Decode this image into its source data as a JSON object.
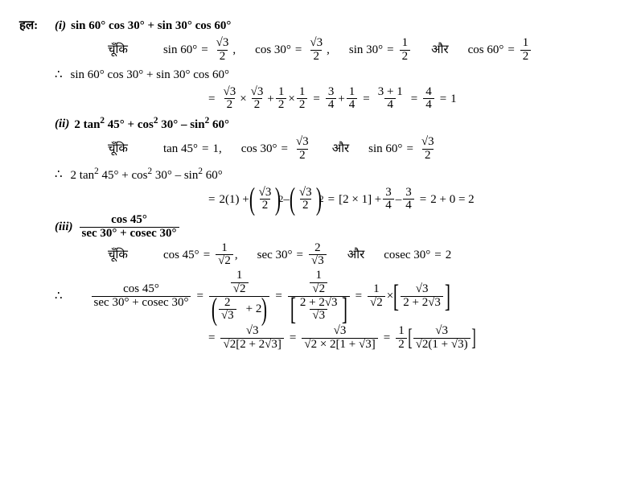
{
  "solution_label": "हल:",
  "since_word": "चूँकि",
  "and_word": "और",
  "therefore_sym": "∴",
  "parts": {
    "i": {
      "roman": "(i)",
      "expression_prefix": "sin 60° cos 30° + sin 30° cos 60°",
      "subs": {
        "a_lhs": "sin 60°",
        "a_num": "√3",
        "a_den": "2",
        "b_lhs": "cos 30°",
        "b_num": "√3",
        "b_den": "2",
        "c_lhs": "sin 30°",
        "c_num": "1",
        "c_den": "2",
        "d_lhs": "cos 60°",
        "d_num": "1",
        "d_den": "2"
      },
      "restate": "sin 60° cos 30° + sin 30° cos 60°",
      "steps": {
        "s1_a_num": "√3",
        "s1_a_den": "2",
        "s1_b_num": "√3",
        "s1_b_den": "2",
        "s1_c_num": "1",
        "s1_c_den": "2",
        "s1_d_num": "1",
        "s1_d_den": "2",
        "s2_a_num": "3",
        "s2_a_den": "4",
        "s2_b_num": "1",
        "s2_b_den": "4",
        "s3_num": "3 + 1",
        "s3_den": "4",
        "s4_num": "4",
        "s4_den": "4",
        "s5": "1"
      }
    },
    "ii": {
      "roman": "(ii)",
      "expression_prefix_a": "2 tan",
      "expression_prefix_b": " 45° + cos",
      "expression_prefix_c": " 30° – sin",
      "expression_prefix_d": " 60°",
      "subs": {
        "a_lhs": "tan 45°",
        "a_val": "1",
        "b_lhs": "cos 30°",
        "b_num": "√3",
        "b_den": "2",
        "c_lhs": "sin 60°",
        "c_num": "√3",
        "c_den": "2"
      },
      "restate_a": "2 tan",
      "restate_b": " 45° + cos",
      "restate_c": " 30° – sin",
      "restate_d": " 60°",
      "steps": {
        "s1_lead": "2(1) +",
        "s1_p1_num": "√3",
        "s1_p1_den": "2",
        "s1_p2_num": "√3",
        "s1_p2_den": "2",
        "s2_txt": "[2 × 1] +",
        "s2_a_num": "3",
        "s2_a_den": "4",
        "s2_b_num": "3",
        "s2_b_den": "4",
        "s3": "2 + 0 = 2"
      }
    },
    "iii": {
      "roman": "(iii)",
      "expr_num": "cos 45°",
      "expr_den": "sec 30° + cosec 30°",
      "subs": {
        "a_lhs": "cos 45°",
        "a_num": "1",
        "a_den": "√2",
        "b_lhs": "sec 30°",
        "b_num": "2",
        "b_den": "√3",
        "c_lhs": "cosec 30°",
        "c_val": "2"
      },
      "restate_num": "cos 45°",
      "restate_den": "sec 30° + cosec 30°",
      "steps": {
        "f1_top_num": "1",
        "f1_top_den": "√2",
        "f1_bot_num": "2",
        "f1_bot_den": "√3",
        "f1_bot_tail": "+ 2",
        "f2_top_num": "1",
        "f2_top_den": "√2",
        "f2_bot_num": "2 + 2√3",
        "f2_bot_den": "√3",
        "f3_a_num": "1",
        "f3_a_den": "√2",
        "f3_b_num": "√3",
        "f3_b_den": "2 + 2√3",
        "l2_a_num": "√3",
        "l2_a_den": "√2[2 + 2√3]",
        "l2_b_num": "√3",
        "l2_b_den": "√2 × 2[1 + √3]",
        "l2_c_lead_num": "1",
        "l2_c_lead_den": "2",
        "l2_c_num": "√3",
        "l2_c_den": "√2(1 + √3)"
      }
    }
  }
}
